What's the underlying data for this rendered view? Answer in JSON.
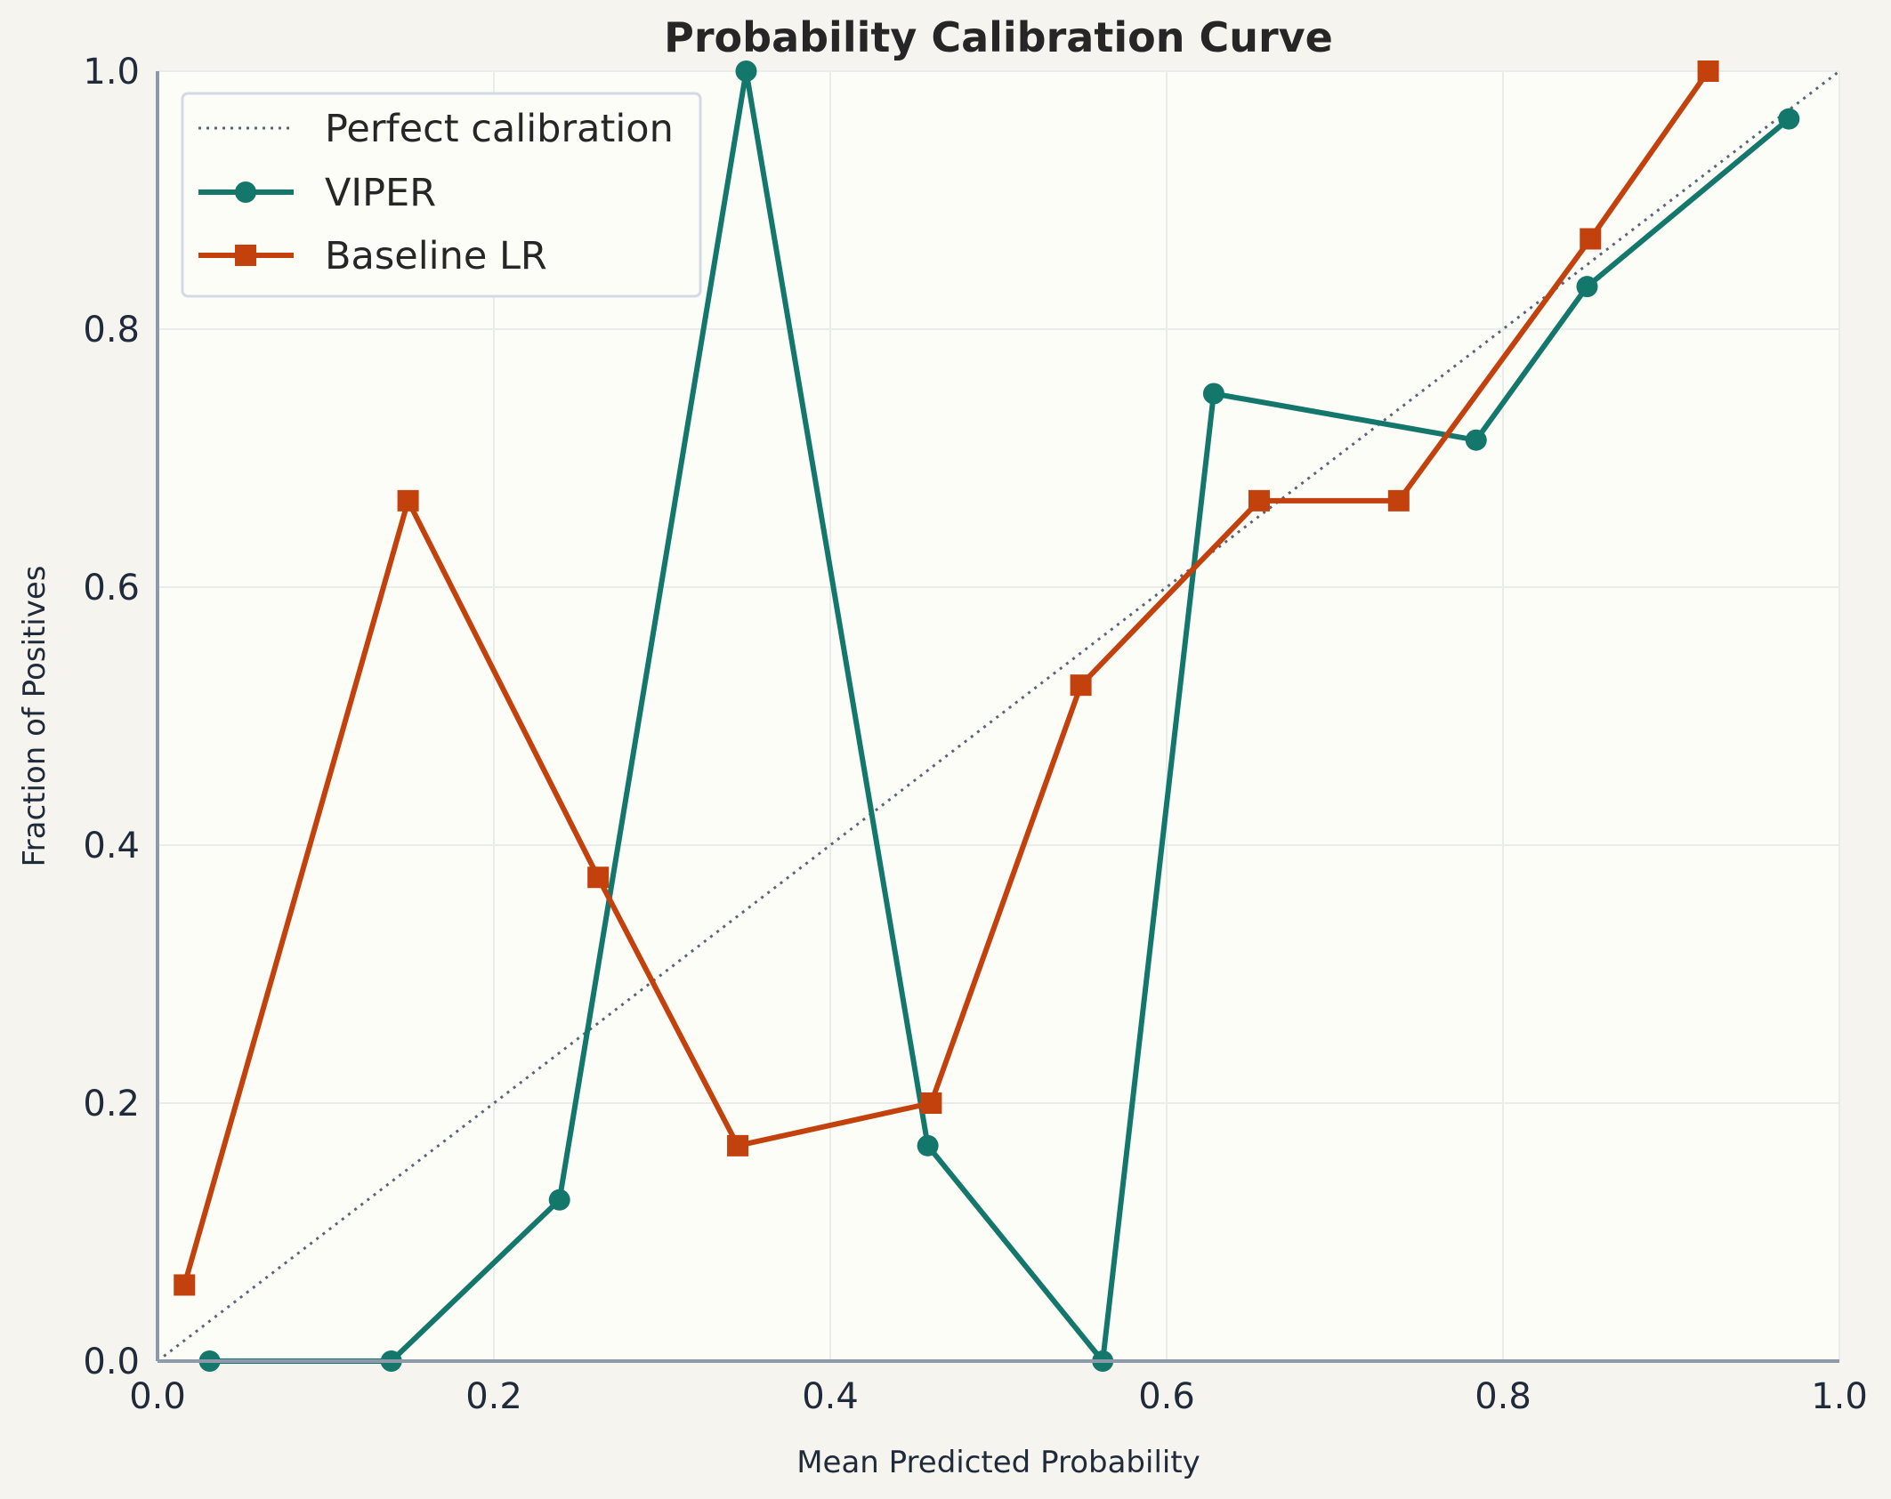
{
  "chart_data": {
    "type": "line",
    "title": "Probability Calibration Curve",
    "xlabel": "Mean Predicted Probability",
    "ylabel": "Fraction of Positives",
    "xlim": [
      0.0,
      1.0
    ],
    "ylim": [
      0.0,
      1.0
    ],
    "xticks": [
      "0.0",
      "0.2",
      "0.4",
      "0.6",
      "0.8",
      "1.0"
    ],
    "yticks": [
      "0.0",
      "0.2",
      "0.4",
      "0.6",
      "0.8",
      "1.0"
    ],
    "grid": true,
    "legend_position": "top-left",
    "series": [
      {
        "name": "Perfect calibration",
        "style": "dotted",
        "marker": "none",
        "color": "#5a6478",
        "x": [
          0.0,
          1.0
        ],
        "y": [
          0.0,
          1.0
        ]
      },
      {
        "name": "VIPER",
        "style": "solid",
        "marker": "circle",
        "color": "#13776c",
        "x": [
          0.031,
          0.139,
          0.239,
          0.35,
          0.458,
          0.562,
          0.628,
          0.784,
          0.85,
          0.97
        ],
        "y": [
          0.0,
          0.0,
          0.125,
          1.0,
          0.167,
          0.0,
          0.75,
          0.714,
          0.833,
          0.963
        ]
      },
      {
        "name": "Baseline LR",
        "style": "solid",
        "marker": "square",
        "color": "#c2410c",
        "x": [
          0.016,
          0.149,
          0.262,
          0.345,
          0.46,
          0.549,
          0.655,
          0.738,
          0.852,
          0.922
        ],
        "y": [
          0.059,
          0.667,
          0.375,
          0.167,
          0.2,
          0.524,
          0.667,
          0.667,
          0.87,
          1.0
        ]
      }
    ]
  },
  "colors": {
    "page_background": "#f6f4ee",
    "plot_background": "#fdfdf8",
    "spine": "#8e9aab",
    "grid": "#e9ece8"
  }
}
